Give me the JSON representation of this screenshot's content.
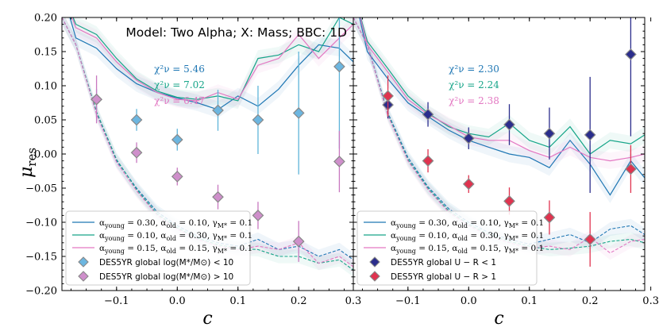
{
  "chart_data": [
    {
      "type": "line",
      "title": "Model: Two Alpha; X: Mass; BBC: 1D",
      "xlabel": "c",
      "ylabel": "μres",
      "xlim": [
        -0.19,
        0.29
      ],
      "ylim": [
        -0.2,
        0.2
      ],
      "xticks": [
        -0.1,
        0.0,
        0.1,
        0.2
      ],
      "xtick_labels": [
        "−0.1",
        "0.0",
        "0.1",
        "0.2"
      ],
      "yticks": [
        -0.2,
        -0.15,
        -0.1,
        -0.05,
        0.0,
        0.05,
        0.1,
        0.15,
        0.2
      ],
      "ytick_labels": [
        "−0.20",
        "−0.15",
        "−0.10",
        "−0.05",
        "0.00",
        "0.05",
        "0.10",
        "0.15",
        "0.20"
      ],
      "bin_x": [
        -0.133,
        -0.067,
        0.0,
        0.067,
        0.133,
        0.2,
        0.267
      ],
      "chi2": [
        {
          "label": "χ²ν = 5.46",
          "color": "#1f77b4"
        },
        {
          "label": "χ²ν = 7.02",
          "color": "#17a589"
        },
        {
          "label": "χ²ν = 6.47",
          "color": "#e377c2"
        }
      ],
      "series": [
        {
          "name": "α_young = 0.30, α_old = 0.10, γ_M* = 0.1",
          "color": "#1f77b4",
          "x": [
            -0.19,
            -0.167,
            -0.133,
            -0.1,
            -0.067,
            -0.033,
            0.0,
            0.033,
            0.067,
            0.1,
            0.133,
            0.167,
            0.2,
            0.233,
            0.267,
            0.29
          ],
          "y": [
            0.24,
            0.17,
            0.155,
            0.125,
            0.103,
            0.09,
            0.082,
            0.075,
            0.065,
            0.085,
            0.07,
            0.095,
            0.13,
            0.16,
            0.155,
            0.135
          ],
          "dashed_x": [
            -0.19,
            -0.167,
            -0.133,
            -0.1,
            -0.067,
            -0.033,
            0.0,
            0.033,
            0.067,
            0.1,
            0.133,
            0.167,
            0.2,
            0.233,
            0.267,
            0.29
          ],
          "dashed_y": [
            0.2,
            0.16,
            0.06,
            -0.01,
            -0.05,
            -0.085,
            -0.105,
            -0.12,
            -0.13,
            -0.135,
            -0.125,
            -0.14,
            -0.135,
            -0.15,
            -0.14,
            -0.155
          ]
        },
        {
          "name": "α_young = 0.10, α_old = 0.30, γ_M* = 0.1",
          "color": "#17a589",
          "x": [
            -0.19,
            -0.167,
            -0.133,
            -0.1,
            -0.067,
            -0.033,
            0.0,
            0.033,
            0.067,
            0.1,
            0.133,
            0.167,
            0.2,
            0.233,
            0.267,
            0.29
          ],
          "y": [
            0.24,
            0.19,
            0.175,
            0.14,
            0.11,
            0.092,
            0.083,
            0.08,
            0.085,
            0.078,
            0.14,
            0.145,
            0.16,
            0.15,
            0.2,
            0.19
          ],
          "dashed_x": [
            -0.19,
            -0.167,
            -0.133,
            -0.1,
            -0.067,
            -0.033,
            0.0,
            0.033,
            0.067,
            0.1,
            0.133,
            0.167,
            0.2,
            0.233,
            0.267,
            0.29
          ],
          "dashed_y": [
            0.2,
            0.16,
            0.062,
            -0.008,
            -0.052,
            -0.088,
            -0.108,
            -0.123,
            -0.133,
            -0.138,
            -0.14,
            -0.15,
            -0.15,
            -0.16,
            -0.155,
            -0.17
          ]
        },
        {
          "name": "α_young = 0.15, α_old = 0.15, γ_M* = 0.1",
          "color": "#e377c2",
          "x": [
            -0.19,
            -0.167,
            -0.133,
            -0.1,
            -0.067,
            -0.033,
            0.0,
            0.033,
            0.067,
            0.1,
            0.133,
            0.167,
            0.2,
            0.233,
            0.267,
            0.29
          ],
          "y": [
            0.24,
            0.185,
            0.17,
            0.135,
            0.108,
            0.09,
            0.08,
            0.078,
            0.09,
            0.08,
            0.13,
            0.14,
            0.175,
            0.14,
            0.17,
            0.19
          ],
          "dashed_x": [
            -0.19,
            -0.167,
            -0.133,
            -0.1,
            -0.067,
            -0.033,
            0.0,
            0.033,
            0.067,
            0.1,
            0.133,
            0.167,
            0.2,
            0.233,
            0.267,
            0.29
          ],
          "dashed_y": [
            0.2,
            0.16,
            0.058,
            -0.012,
            -0.054,
            -0.09,
            -0.11,
            -0.125,
            -0.135,
            -0.14,
            -0.135,
            -0.14,
            -0.13,
            -0.16,
            -0.15,
            -0.165
          ]
        }
      ],
      "data_points": [
        {
          "name": "DES5YR global log(M*/M⊙) < 10",
          "fill": "#6cb6e0",
          "stroke": "#888888",
          "errcolor": "#5fb4d9",
          "x": [
            -0.133,
            -0.067,
            0.0,
            0.067,
            0.133,
            0.2,
            0.267
          ],
          "y": [
            0.08,
            0.05,
            0.021,
            0.064,
            0.05,
            0.06,
            0.128
          ],
          "err": [
            0.015,
            0.016,
            0.016,
            0.03,
            0.05,
            0.09,
            0.12
          ]
        },
        {
          "name": "DES5YR global log(M*/M⊙) > 10",
          "fill": "#cf8fcb",
          "stroke": "#888888",
          "errcolor": "#c878c0",
          "x": [
            -0.133,
            -0.067,
            0.0,
            0.067,
            0.133,
            0.2,
            0.267
          ],
          "y": [
            0.08,
            0.002,
            -0.033,
            -0.063,
            -0.09,
            -0.128,
            -0.011
          ],
          "err": [
            0.035,
            0.015,
            0.013,
            0.018,
            0.02,
            0.03,
            0.045
          ]
        }
      ],
      "legend": {
        "placement": "lower-left",
        "line_entries": [
          {
            "prefix": "α",
            "sub": "young",
            "mid": " = 0.30, α",
            "sub2": "old",
            "suffix": " = 0.10, γ",
            "sub3": "M*",
            "end": " = 0.1",
            "color": "#1f77b4"
          },
          {
            "prefix": "α",
            "sub": "young",
            "mid": " = 0.10, α",
            "sub2": "old",
            "suffix": " = 0.30, γ",
            "sub3": "M*",
            "end": " = 0.1",
            "color": "#17a589"
          },
          {
            "prefix": "α",
            "sub": "young",
            "mid": " = 0.15, α",
            "sub2": "old",
            "suffix": " = 0.15, γ",
            "sub3": "M*",
            "end": " = 0.1",
            "color": "#e377c2"
          }
        ],
        "marker_entries": [
          {
            "text": "DES5YR global log(M*/M⊙) < 10",
            "fill": "#6cb6e0"
          },
          {
            "text": "DES5YR global log(M*/M⊙) > 10",
            "fill": "#cf8fcb"
          }
        ]
      }
    },
    {
      "type": "line",
      "xlabel": "c",
      "xlim": [
        -0.19,
        0.29
      ],
      "ylim": [
        -0.2,
        0.2
      ],
      "xticks": [
        -0.1,
        0.0,
        0.1,
        0.2,
        0.3
      ],
      "xtick_labels": [
        "−0.1",
        "0.0",
        "0.1",
        "0.2",
        "0.3"
      ],
      "left_tick_label": "0.3",
      "chi2": [
        {
          "label": "χ²ν = 2.30",
          "color": "#1f77b4"
        },
        {
          "label": "χ²ν = 2.24",
          "color": "#17a589"
        },
        {
          "label": "χ²ν = 2.38",
          "color": "#e377c2"
        }
      ],
      "series": [
        {
          "name": "α_young = 0.30, α_old = 0.10, γ_M* = 0.1",
          "color": "#1f77b4",
          "x": [
            -0.19,
            -0.167,
            -0.133,
            -0.1,
            -0.067,
            -0.033,
            0.0,
            0.033,
            0.067,
            0.1,
            0.133,
            0.167,
            0.2,
            0.233,
            0.267,
            0.29
          ],
          "y": [
            0.24,
            0.15,
            0.11,
            0.075,
            0.055,
            0.035,
            0.02,
            0.01,
            0.0,
            -0.005,
            -0.02,
            0.02,
            -0.015,
            -0.06,
            -0.01,
            -0.035
          ],
          "dashed_x": [
            -0.19,
            -0.167,
            -0.133,
            -0.1,
            -0.067,
            -0.033,
            0.0,
            0.033,
            0.067,
            0.1,
            0.133,
            0.167,
            0.2,
            0.233,
            0.267,
            0.29
          ],
          "dashed_y": [
            0.2,
            0.16,
            0.06,
            -0.005,
            -0.048,
            -0.08,
            -0.1,
            -0.115,
            -0.125,
            -0.132,
            -0.125,
            -0.118,
            -0.13,
            -0.11,
            -0.105,
            -0.118
          ]
        },
        {
          "name": "α_young = 0.10, α_old = 0.30, γ_M* = 0.1",
          "color": "#17a589",
          "x": [
            -0.19,
            -0.167,
            -0.133,
            -0.1,
            -0.067,
            -0.033,
            0.0,
            0.033,
            0.067,
            0.1,
            0.133,
            0.167,
            0.2,
            0.233,
            0.267,
            0.29
          ],
          "y": [
            0.24,
            0.165,
            0.125,
            0.085,
            0.06,
            0.04,
            0.03,
            0.025,
            0.045,
            0.02,
            0.01,
            0.04,
            0.0,
            0.02,
            0.015,
            0.028
          ],
          "dashed_x": [
            -0.19,
            -0.167,
            -0.133,
            -0.1,
            -0.067,
            -0.033,
            0.0,
            0.033,
            0.067,
            0.1,
            0.133,
            0.167,
            0.2,
            0.233,
            0.267,
            0.29
          ],
          "dashed_y": [
            0.2,
            0.16,
            0.058,
            -0.008,
            -0.05,
            -0.083,
            -0.103,
            -0.118,
            -0.128,
            -0.135,
            -0.14,
            -0.138,
            -0.135,
            -0.128,
            -0.125,
            -0.13
          ]
        },
        {
          "name": "α_young = 0.15, α_old = 0.15, γ_M* = 0.1",
          "color": "#e377c2",
          "x": [
            -0.19,
            -0.167,
            -0.133,
            -0.1,
            -0.067,
            -0.033,
            0.0,
            0.033,
            0.067,
            0.1,
            0.133,
            0.167,
            0.2,
            0.233,
            0.267,
            0.29
          ],
          "y": [
            0.24,
            0.16,
            0.12,
            0.08,
            0.058,
            0.042,
            0.025,
            0.02,
            0.02,
            0.005,
            -0.005,
            0.01,
            -0.005,
            -0.01,
            -0.005,
            0.0
          ],
          "dashed_x": [
            -0.19,
            -0.167,
            -0.133,
            -0.1,
            -0.067,
            -0.033,
            0.0,
            0.033,
            0.067,
            0.1,
            0.133,
            0.167,
            0.2,
            0.233,
            0.267,
            0.29
          ],
          "dashed_y": [
            0.2,
            0.16,
            0.056,
            -0.01,
            -0.052,
            -0.085,
            -0.105,
            -0.12,
            -0.13,
            -0.138,
            -0.135,
            -0.14,
            -0.122,
            -0.145,
            -0.128,
            -0.125
          ]
        }
      ],
      "data_points": [
        {
          "name": "DES5YR global U − R < 1",
          "fill": "#2b2d8c",
          "stroke": "#888888",
          "errcolor": "#2b2d8c",
          "x": [
            -0.133,
            -0.067,
            0.0,
            0.067,
            0.133,
            0.2,
            0.267
          ],
          "y": [
            0.072,
            0.058,
            0.023,
            0.043,
            0.03,
            0.028,
            0.146
          ],
          "err": [
            0.02,
            0.018,
            0.016,
            0.03,
            0.038,
            0.085,
            0.12
          ]
        },
        {
          "name": "DES5YR global U − R > 1",
          "fill": "#e0334f",
          "stroke": "#888888",
          "errcolor": "#e0334f",
          "x": [
            -0.133,
            -0.067,
            0.0,
            0.067,
            0.133,
            0.2,
            0.267
          ],
          "y": [
            0.085,
            -0.01,
            -0.044,
            -0.069,
            -0.093,
            -0.125,
            -0.022
          ],
          "err": [
            0.03,
            0.017,
            0.013,
            0.02,
            0.025,
            0.04,
            0.035
          ]
        }
      ],
      "legend": {
        "placement": "lower-left",
        "line_entries": [
          {
            "prefix": "α",
            "sub": "young",
            "mid": " = 0.30, α",
            "sub2": "old",
            "suffix": " = 0.10, γ",
            "sub3": "M*",
            "end": " = 0.1",
            "color": "#1f77b4"
          },
          {
            "prefix": "α",
            "sub": "young",
            "mid": " = 0.10, α",
            "sub2": "old",
            "suffix": " = 0.30, γ",
            "sub3": "M*",
            "end": " = 0.1",
            "color": "#17a589"
          },
          {
            "prefix": "α",
            "sub": "young",
            "mid": " = 0.15, α",
            "sub2": "old",
            "suffix": " = 0.15, γ",
            "sub3": "M*",
            "end": " = 0.1",
            "color": "#e377c2"
          }
        ],
        "marker_entries": [
          {
            "text": "DES5YR global U − R < 1",
            "fill": "#2b2d8c"
          },
          {
            "text": "DES5YR global U − R > 1",
            "fill": "#e0334f"
          }
        ]
      }
    }
  ]
}
